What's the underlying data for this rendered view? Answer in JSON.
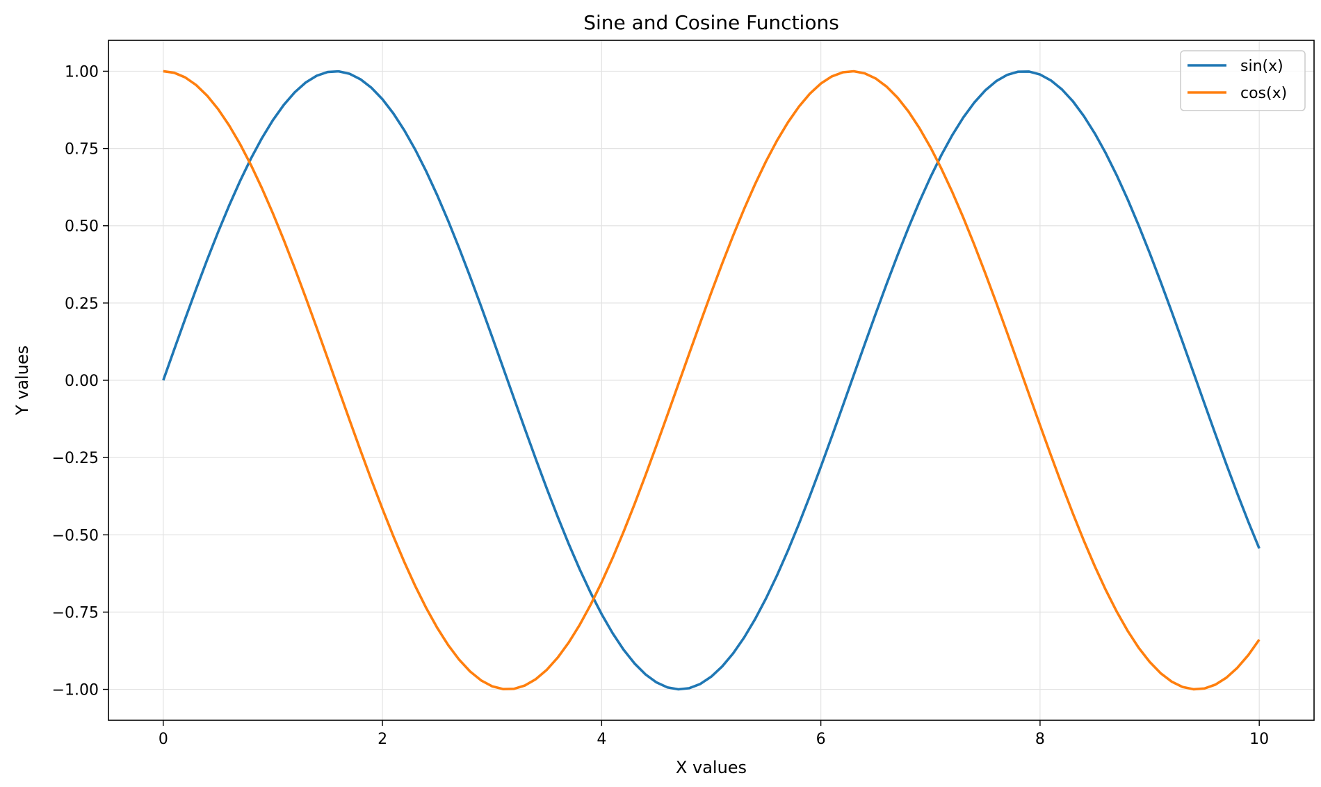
{
  "chart_data": {
    "type": "line",
    "title": "Sine and Cosine Functions",
    "xlabel": "X values",
    "ylabel": "Y values",
    "xlim": [
      -0.5,
      10.5
    ],
    "ylim": [
      -1.1,
      1.1
    ],
    "xticks": [
      0,
      2,
      4,
      6,
      8,
      10
    ],
    "xtick_labels": [
      "0",
      "2",
      "4",
      "6",
      "8",
      "10"
    ],
    "yticks": [
      1.0,
      0.75,
      0.5,
      0.25,
      0.0,
      -0.25,
      -0.5,
      -0.75,
      -1.0
    ],
    "ytick_labels": [
      "1.00",
      "0.75",
      "0.50",
      "0.25",
      "0.00",
      "−0.25",
      "−0.50",
      "−0.75",
      "−1.00"
    ],
    "grid": true,
    "legend_position": "top-right",
    "x": [
      0,
      0.1,
      0.2,
      0.3,
      0.4,
      0.5,
      0.6,
      0.7,
      0.8,
      0.9,
      1.0,
      1.1,
      1.2,
      1.3,
      1.4,
      1.5,
      1.6,
      1.7,
      1.8,
      1.9,
      2.0,
      2.1,
      2.2,
      2.3,
      2.4,
      2.5,
      2.6,
      2.7,
      2.8,
      2.9,
      3.0,
      3.1,
      3.2,
      3.3,
      3.4,
      3.5,
      3.6,
      3.7,
      3.8,
      3.9,
      4.0,
      4.1,
      4.2,
      4.3,
      4.4,
      4.5,
      4.6,
      4.7,
      4.8,
      4.9,
      5.0,
      5.1,
      5.2,
      5.3,
      5.4,
      5.5,
      5.6,
      5.7,
      5.8,
      5.9,
      6.0,
      6.1,
      6.2,
      6.3,
      6.4,
      6.5,
      6.6,
      6.7,
      6.8,
      6.9,
      7.0,
      7.1,
      7.2,
      7.3,
      7.4,
      7.5,
      7.6,
      7.7,
      7.8,
      7.9,
      8.0,
      8.1,
      8.2,
      8.3,
      8.4,
      8.5,
      8.6,
      8.7,
      8.8,
      8.9,
      9.0,
      9.1,
      9.2,
      9.3,
      9.4,
      9.5,
      9.6,
      9.7,
      9.8,
      9.9,
      10.0
    ],
    "series": [
      {
        "name": "sin(x)",
        "color": "#1f77b4",
        "values": [
          0.0,
          0.0998,
          0.1987,
          0.2955,
          0.3894,
          0.4794,
          0.5646,
          0.6442,
          0.7174,
          0.7833,
          0.8415,
          0.8912,
          0.932,
          0.9636,
          0.9854,
          0.9975,
          0.9996,
          0.9917,
          0.9738,
          0.9463,
          0.9093,
          0.8632,
          0.8085,
          0.7457,
          0.6755,
          0.5985,
          0.5155,
          0.4274,
          0.335,
          0.2392,
          0.1411,
          0.0416,
          -0.0584,
          -0.1577,
          -0.2555,
          -0.3508,
          -0.4425,
          -0.5298,
          -0.6119,
          -0.6878,
          -0.7568,
          -0.8183,
          -0.8716,
          -0.9162,
          -0.9516,
          -0.9775,
          -0.9937,
          -0.9999,
          -0.9962,
          -0.9825,
          -0.9589,
          -0.9258,
          -0.8835,
          -0.8323,
          -0.7728,
          -0.7055,
          -0.6313,
          -0.5507,
          -0.4646,
          -0.3739,
          -0.2794,
          -0.1822,
          -0.0831,
          0.0168,
          0.1165,
          0.2151,
          0.3115,
          0.4048,
          0.4941,
          0.5784,
          0.657,
          0.729,
          0.7937,
          0.8504,
          0.8987,
          0.938,
          0.9679,
          0.9882,
          0.9985,
          0.9989,
          0.9894,
          0.97,
          0.941,
          0.9026,
          0.8546,
          0.7985,
          0.7344,
          0.663,
          0.5849,
          0.5008,
          0.4121,
          0.319,
          0.2229,
          0.1245,
          0.0248,
          -0.0752,
          -0.1743,
          -0.2718,
          -0.3665,
          -0.4575,
          -0.544
        ]
      },
      {
        "name": "cos(x)",
        "color": "#ff7f0e",
        "values": [
          1.0,
          0.995,
          0.9801,
          0.9553,
          0.9211,
          0.8776,
          0.8253,
          0.7648,
          0.6967,
          0.6216,
          0.5403,
          0.4536,
          0.3624,
          0.2675,
          0.17,
          0.0707,
          -0.0292,
          -0.1288,
          -0.2272,
          -0.3233,
          -0.4161,
          -0.5048,
          -0.5885,
          -0.6663,
          -0.7374,
          -0.8011,
          -0.8569,
          -0.9041,
          -0.9422,
          -0.971,
          -0.99,
          -0.9991,
          -0.9983,
          -0.9875,
          -0.9668,
          -0.9365,
          -0.8968,
          -0.8481,
          -0.791,
          -0.7259,
          -0.6536,
          -0.5748,
          -0.4903,
          -0.4008,
          -0.3073,
          -0.2108,
          -0.1122,
          -0.0124,
          0.0875,
          0.1865,
          0.2837,
          0.378,
          0.4685,
          0.5544,
          0.6347,
          0.7087,
          0.7756,
          0.8347,
          0.8855,
          0.9275,
          0.9602,
          0.9833,
          0.9965,
          0.9999,
          0.9932,
          0.9766,
          0.9502,
          0.9144,
          0.8694,
          0.8157,
          0.7539,
          0.6845,
          0.6084,
          0.5261,
          0.4385,
          0.3466,
          0.2513,
          0.1534,
          0.054,
          -0.046,
          -0.1455,
          -0.2435,
          -0.3392,
          -0.4314,
          -0.5193,
          -0.602,
          -0.6787,
          -0.7486,
          -0.8111,
          -0.8654,
          -0.9111,
          -0.9477,
          -0.9748,
          -0.9922,
          -0.9997,
          -0.9972,
          -0.9847,
          -0.9624,
          -0.9304,
          -0.8892,
          -0.8391
        ]
      }
    ]
  }
}
